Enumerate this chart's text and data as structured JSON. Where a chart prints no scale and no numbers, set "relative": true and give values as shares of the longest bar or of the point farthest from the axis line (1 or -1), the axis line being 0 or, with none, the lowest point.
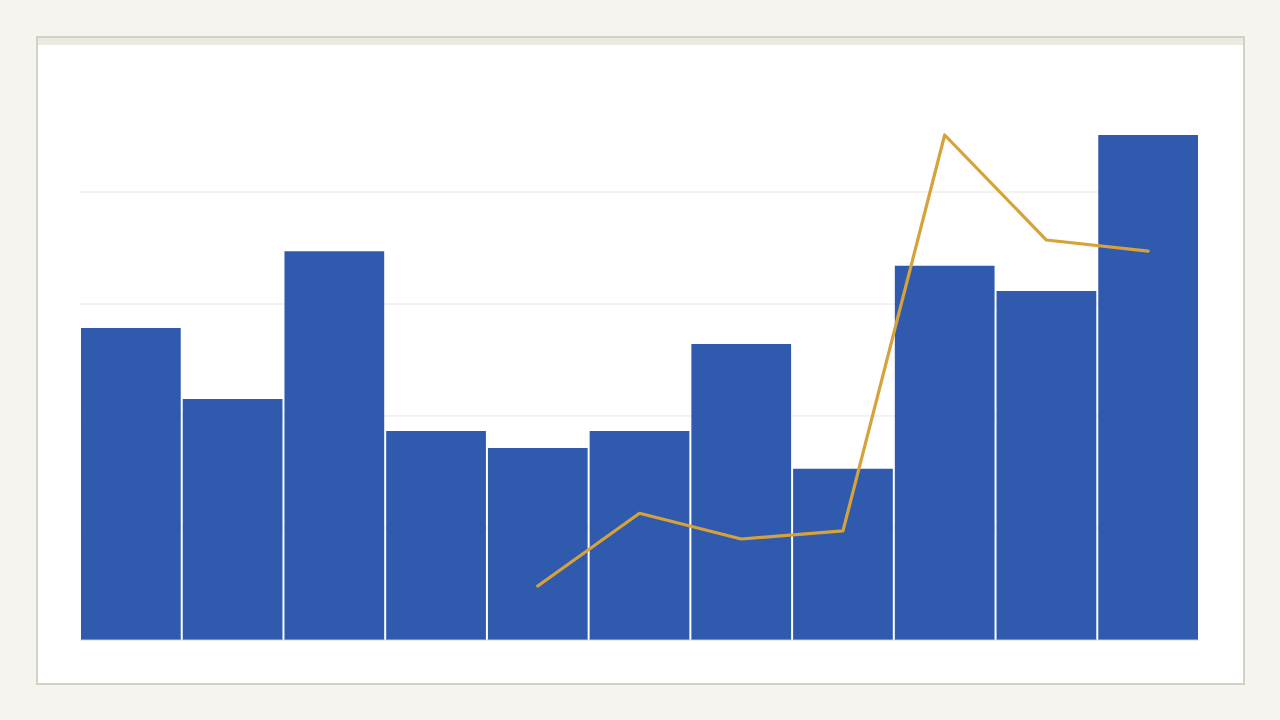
{
  "chart_data": [
    {
      "type": "bar",
      "relative": true,
      "grid": "y",
      "color": "#2f5aae",
      "categories": [
        null,
        null,
        null,
        null,
        null,
        null,
        null,
        null,
        null,
        null,
        null
      ],
      "values": [
        0.618,
        0.477,
        0.77,
        0.414,
        0.38,
        0.414,
        0.586,
        0.339,
        0.741,
        0.691,
        1.0
      ]
    },
    {
      "type": "line",
      "relative": true,
      "color": "#d6a23a",
      "categories": [
        null,
        null,
        null,
        null,
        null,
        null,
        null,
        null,
        null,
        null,
        null
      ],
      "values": [
        null,
        null,
        null,
        null,
        0.107,
        0.251,
        0.2,
        0.216,
        1.0,
        0.792,
        0.77
      ]
    }
  ]
}
